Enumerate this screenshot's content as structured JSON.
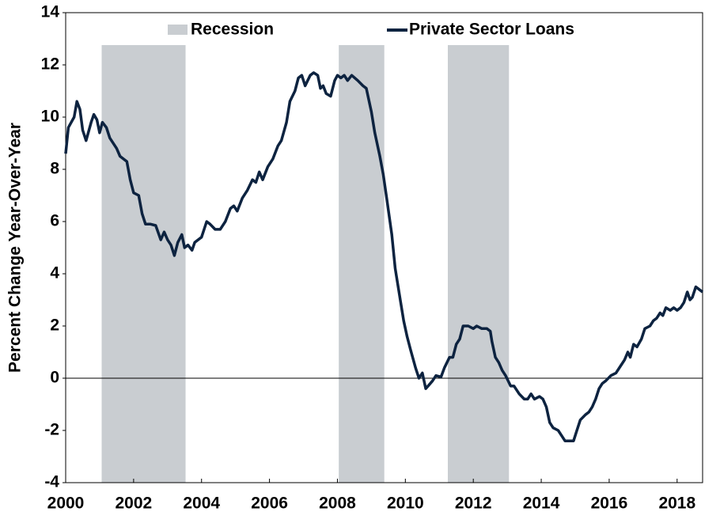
{
  "chart_data": {
    "type": "line",
    "ylabel": "Percent Change Year-Over-Year",
    "xlim": [
      2000,
      2018.75
    ],
    "xticks": [
      2000,
      2002,
      2004,
      2006,
      2008,
      2010,
      2012,
      2014,
      2016,
      2018
    ],
    "ylim": [
      -4,
      14
    ],
    "yticks": [
      -4,
      -2,
      0,
      2,
      4,
      6,
      8,
      10,
      12,
      14
    ],
    "legend": "top",
    "recessions": {
      "name": "Recession",
      "color": "#c9cdd1",
      "periods": [
        [
          2001.06,
          2003.53
        ],
        [
          2008.04,
          2009.38
        ],
        [
          2011.25,
          2013.05
        ]
      ]
    },
    "x": [
      2000.0,
      2000.08,
      2000.25,
      2000.33,
      2000.42,
      2000.5,
      2000.6,
      2000.75,
      2000.83,
      2000.92,
      2001.0,
      2001.08,
      2001.2,
      2001.3,
      2001.5,
      2001.6,
      2001.8,
      2001.9,
      2002.0,
      2002.15,
      2002.25,
      2002.35,
      2002.5,
      2002.65,
      2002.8,
      2002.9,
      2003.0,
      2003.1,
      2003.2,
      2003.3,
      2003.42,
      2003.5,
      2003.6,
      2003.72,
      2003.8,
      2004.0,
      2004.15,
      2004.25,
      2004.4,
      2004.55,
      2004.7,
      2004.85,
      2004.95,
      2005.05,
      2005.2,
      2005.35,
      2005.5,
      2005.6,
      2005.7,
      2005.8,
      2005.95,
      2006.1,
      2006.25,
      2006.35,
      2006.5,
      2006.6,
      2006.75,
      2006.85,
      2006.95,
      2007.05,
      2007.2,
      2007.3,
      2007.42,
      2007.5,
      2007.58,
      2007.67,
      2007.8,
      2007.92,
      2008.0,
      2008.1,
      2008.2,
      2008.3,
      2008.42,
      2008.6,
      2008.75,
      2008.85,
      2009.0,
      2009.1,
      2009.25,
      2009.35,
      2009.45,
      2009.6,
      2009.7,
      2009.85,
      2009.95,
      2010.05,
      2010.15,
      2010.3,
      2010.4,
      2010.5,
      2010.6,
      2010.7,
      2010.8,
      2010.9,
      2011.05,
      2011.15,
      2011.3,
      2011.4,
      2011.5,
      2011.6,
      2011.7,
      2011.85,
      2012.0,
      2012.1,
      2012.25,
      2012.4,
      2012.5,
      2012.55,
      2012.65,
      2012.75,
      2012.85,
      2012.95,
      2013.1,
      2013.2,
      2013.35,
      2013.5,
      2013.6,
      2013.7,
      2013.8,
      2013.95,
      2014.05,
      2014.15,
      2014.25,
      2014.35,
      2014.5,
      2014.6,
      2014.7,
      2014.8,
      2014.95,
      2015.05,
      2015.15,
      2015.3,
      2015.4,
      2015.5,
      2015.6,
      2015.7,
      2015.8,
      2015.9,
      2016.05,
      2016.2,
      2016.35,
      2016.45,
      2016.55,
      2016.62,
      2016.72,
      2016.82,
      2016.95,
      2017.05,
      2017.2,
      2017.3,
      2017.4,
      2017.5,
      2017.58,
      2017.67,
      2017.8,
      2017.9,
      2018.0,
      2018.1,
      2018.2,
      2018.3,
      2018.38,
      2018.45,
      2018.55,
      2018.65,
      2018.75
    ],
    "series": [
      {
        "name": "Private Sector Loans",
        "color": "#0d2340",
        "values": [
          8.6,
          9.6,
          10.0,
          10.6,
          10.3,
          9.5,
          9.1,
          9.8,
          10.1,
          9.9,
          9.4,
          9.8,
          9.6,
          9.2,
          8.8,
          8.5,
          8.3,
          7.6,
          7.1,
          7.0,
          6.3,
          5.9,
          5.9,
          5.85,
          5.3,
          5.6,
          5.3,
          5.1,
          4.7,
          5.2,
          5.5,
          5.0,
          5.1,
          4.9,
          5.2,
          5.4,
          6.0,
          5.9,
          5.7,
          5.7,
          6.0,
          6.5,
          6.6,
          6.4,
          6.9,
          7.2,
          7.6,
          7.5,
          7.9,
          7.6,
          8.1,
          8.4,
          8.9,
          9.1,
          9.8,
          10.6,
          11.0,
          11.5,
          11.6,
          11.2,
          11.6,
          11.7,
          11.6,
          11.1,
          11.2,
          10.9,
          10.8,
          11.4,
          11.6,
          11.5,
          11.6,
          11.4,
          11.6,
          11.4,
          11.2,
          11.1,
          10.2,
          9.4,
          8.5,
          7.8,
          6.9,
          5.5,
          4.2,
          3.0,
          2.2,
          1.6,
          1.1,
          0.4,
          0.0,
          0.2,
          -0.4,
          -0.25,
          -0.1,
          0.1,
          0.05,
          0.4,
          0.8,
          0.8,
          1.3,
          1.5,
          2.0,
          2.0,
          1.9,
          2.0,
          1.9,
          1.9,
          1.8,
          1.4,
          0.8,
          0.6,
          0.3,
          0.1,
          -0.3,
          -0.3,
          -0.6,
          -0.8,
          -0.8,
          -0.6,
          -0.8,
          -0.7,
          -0.8,
          -1.1,
          -1.7,
          -1.9,
          -2.0,
          -2.2,
          -2.4,
          -2.4,
          -2.4,
          -2.0,
          -1.6,
          -1.4,
          -1.3,
          -1.1,
          -0.8,
          -0.4,
          -0.2,
          -0.1,
          0.1,
          0.2,
          0.5,
          0.7,
          1.0,
          0.8,
          1.3,
          1.2,
          1.5,
          1.9,
          2.0,
          2.2,
          2.3,
          2.5,
          2.4,
          2.7,
          2.6,
          2.7,
          2.6,
          2.7,
          2.9,
          3.3,
          3.0,
          3.1,
          3.5,
          3.4,
          3.3
        ]
      }
    ]
  }
}
